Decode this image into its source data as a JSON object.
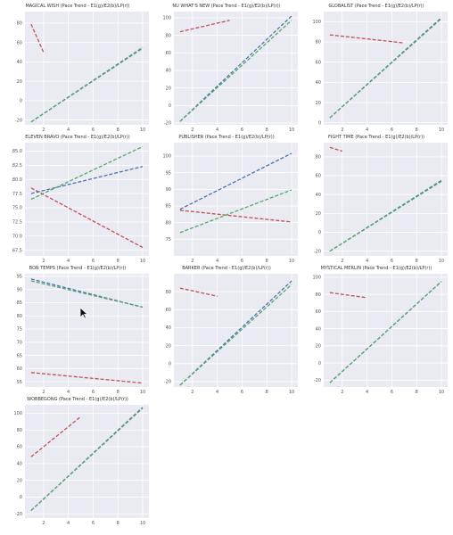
{
  "colors": {
    "background": "#eaeaf2",
    "grid": "#ffffff",
    "red": "#c44e52",
    "blue": "#4c72b0",
    "green": "#55a868"
  },
  "icons": {
    "cursor": "mouse-pointer-icon"
  },
  "chart_data": [
    {
      "type": "line",
      "title": "MAGICAL WISH (Pace Trend - E1(g)/E2(b)/LP(r))",
      "xlim": [
        0.5,
        10.5
      ],
      "ylim": [
        -25,
        92
      ],
      "xticks": [
        2,
        4,
        6,
        8,
        10
      ],
      "yticks": [
        -20,
        0,
        20,
        40,
        60,
        80
      ],
      "grid": true,
      "series": [
        {
          "color": "red",
          "x": [
            1,
            2
          ],
          "y": [
            79,
            50
          ]
        },
        {
          "color": "blue",
          "x": [
            1,
            10
          ],
          "y": [
            -22,
            55
          ]
        },
        {
          "color": "green",
          "x": [
            1,
            10
          ],
          "y": [
            -22,
            54
          ]
        }
      ]
    },
    {
      "type": "line",
      "title": "NU WHAT'S NEW (Pace Trend - E1(g)/E2(b)/LP(r))",
      "xlim": [
        0.5,
        10.5
      ],
      "ylim": [
        -22,
        107
      ],
      "xticks": [
        2,
        4,
        6,
        8,
        10
      ],
      "yticks": [
        -20,
        0,
        20,
        40,
        60,
        80,
        100
      ],
      "grid": true,
      "series": [
        {
          "color": "red",
          "x": [
            1,
            5
          ],
          "y": [
            84,
            97
          ]
        },
        {
          "color": "blue",
          "x": [
            1,
            10
          ],
          "y": [
            -18,
            102
          ]
        },
        {
          "color": "green",
          "x": [
            1,
            10
          ],
          "y": [
            -18,
            97
          ]
        }
      ]
    },
    {
      "type": "line",
      "title": "GLOBALIST (Pace Trend - E1(g)/E2(b)/LP(r))",
      "xlim": [
        0.5,
        10.5
      ],
      "ylim": [
        -2,
        110
      ],
      "xticks": [
        2,
        4,
        6,
        8,
        10
      ],
      "yticks": [
        0,
        20,
        40,
        60,
        80,
        100
      ],
      "grid": true,
      "series": [
        {
          "color": "red",
          "x": [
            1,
            7
          ],
          "y": [
            87,
            79
          ]
        },
        {
          "color": "blue",
          "x": [
            1,
            10
          ],
          "y": [
            5,
            104
          ]
        },
        {
          "color": "green",
          "x": [
            1,
            10
          ],
          "y": [
            5,
            103
          ]
        }
      ]
    },
    {
      "type": "line",
      "title": "ELEVEN BRAVO (Pace Trend - E1(g)/E2(b)/LP(r))",
      "xlim": [
        0.5,
        10.5
      ],
      "ylim": [
        66.5,
        86.5
      ],
      "xticks": [
        2,
        4,
        6,
        8,
        10
      ],
      "yticks": [
        67.5,
        70.0,
        72.5,
        75.0,
        77.5,
        80.0,
        82.5,
        85.0
      ],
      "grid": true,
      "series": [
        {
          "color": "red",
          "x": [
            1,
            10
          ],
          "y": [
            78.5,
            68.0
          ]
        },
        {
          "color": "blue",
          "x": [
            1,
            10
          ],
          "y": [
            77.5,
            82.3
          ]
        },
        {
          "color": "green",
          "x": [
            1,
            10
          ],
          "y": [
            76.5,
            85.8
          ]
        }
      ]
    },
    {
      "type": "line",
      "title": "PUBLISHER (Pace Trend - E1(g)/E2(b)/LP(r))",
      "xlim": [
        0.5,
        10.5
      ],
      "ylim": [
        70,
        104
      ],
      "xticks": [
        2,
        4,
        6,
        8,
        10
      ],
      "yticks": [
        75,
        80,
        85,
        90,
        95,
        100
      ],
      "grid": true,
      "series": [
        {
          "color": "red",
          "x": [
            1,
            10
          ],
          "y": [
            83.7,
            80.2
          ]
        },
        {
          "color": "blue",
          "x": [
            1,
            10
          ],
          "y": [
            84.0,
            100.8
          ]
        },
        {
          "color": "green",
          "x": [
            1,
            10
          ],
          "y": [
            77.0,
            89.8
          ]
        }
      ]
    },
    {
      "type": "line",
      "title": "FIGHT TIME (Pace Trend - E1(g)/E2(b)/LP(r))",
      "xlim": [
        0.5,
        10.5
      ],
      "ylim": [
        -25,
        95
      ],
      "xticks": [
        2,
        4,
        6,
        8,
        10
      ],
      "yticks": [
        -20,
        0,
        20,
        40,
        60,
        80
      ],
      "grid": true,
      "series": [
        {
          "color": "red",
          "x": [
            1,
            2
          ],
          "y": [
            90,
            86
          ]
        },
        {
          "color": "blue",
          "x": [
            1,
            10
          ],
          "y": [
            -20,
            55
          ]
        },
        {
          "color": "green",
          "x": [
            1,
            10
          ],
          "y": [
            -20,
            54
          ]
        }
      ]
    },
    {
      "type": "line",
      "title": "BON TEMPS (Pace Trend - E1(g)/E2(b)/LP(r))",
      "xlim": [
        0.5,
        10.5
      ],
      "ylim": [
        53,
        96
      ],
      "xticks": [
        2,
        4,
        6,
        8,
        10
      ],
      "yticks": [
        55,
        60,
        65,
        70,
        75,
        80,
        85,
        90,
        95
      ],
      "grid": true,
      "series": [
        {
          "color": "red",
          "x": [
            1,
            10
          ],
          "y": [
            58.5,
            54.5
          ]
        },
        {
          "color": "blue",
          "x": [
            1,
            10
          ],
          "y": [
            94,
            83.3
          ]
        },
        {
          "color": "green",
          "x": [
            1,
            10
          ],
          "y": [
            93.3,
            83.3
          ]
        }
      ]
    },
    {
      "type": "line",
      "title": "BARKER (Pace Trend - E1(g)/E2(b)/LP(r))",
      "xlim": [
        0.5,
        10.5
      ],
      "ylim": [
        -26,
        100
      ],
      "xticks": [
        2,
        4,
        6,
        8,
        10
      ],
      "yticks": [
        -20,
        0,
        20,
        40,
        60,
        80
      ],
      "grid": true,
      "series": [
        {
          "color": "red",
          "x": [
            1,
            4
          ],
          "y": [
            84,
            75
          ]
        },
        {
          "color": "blue",
          "x": [
            1,
            10
          ],
          "y": [
            -24,
            92
          ]
        },
        {
          "color": "green",
          "x": [
            1,
            10
          ],
          "y": [
            -24,
            88
          ]
        }
      ]
    },
    {
      "type": "line",
      "title": "MYSTICAL MERLIN (Pace Trend - E1(g)/E2(b)/LP(r))",
      "xlim": [
        0.5,
        10.5
      ],
      "ylim": [
        -28,
        104
      ],
      "xticks": [
        2,
        4,
        6,
        8,
        10
      ],
      "yticks": [
        -20,
        0,
        20,
        40,
        60,
        80,
        100
      ],
      "grid": true,
      "series": [
        {
          "color": "red",
          "x": [
            1,
            4
          ],
          "y": [
            82,
            76
          ]
        },
        {
          "color": "blue",
          "x": [
            1,
            10
          ],
          "y": [
            -23,
            95
          ]
        },
        {
          "color": "green",
          "x": [
            1,
            10
          ],
          "y": [
            -23,
            95
          ]
        }
      ]
    },
    {
      "type": "line",
      "title": "WOBBEGONG (Pace Trend - E1(g)/E2(b)/LP(r))",
      "xlim": [
        0.5,
        10.5
      ],
      "ylim": [
        -25,
        110
      ],
      "xticks": [
        2,
        4,
        6,
        8,
        10
      ],
      "yticks": [
        -20,
        0,
        20,
        40,
        60,
        80,
        100
      ],
      "grid": true,
      "series": [
        {
          "color": "red",
          "x": [
            1,
            5
          ],
          "y": [
            48,
            96
          ]
        },
        {
          "color": "blue",
          "x": [
            1,
            10
          ],
          "y": [
            -16,
            107
          ]
        },
        {
          "color": "green",
          "x": [
            1,
            10
          ],
          "y": [
            -16,
            106
          ]
        }
      ]
    }
  ]
}
